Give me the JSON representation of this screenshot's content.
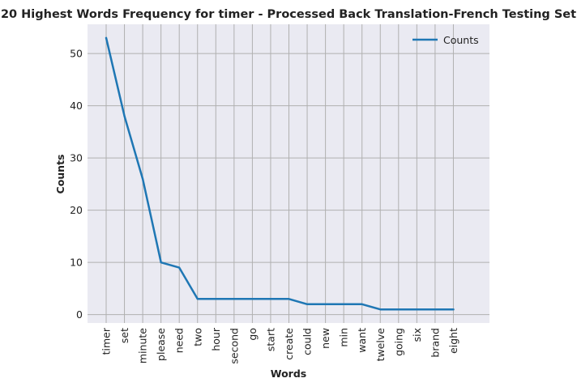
{
  "chart_data": {
    "type": "line",
    "title": "20 Highest Words Frequency for timer - Processed Back Translation-French Testing Set",
    "xlabel": "Words",
    "ylabel": "Counts",
    "categories": [
      "timer",
      "set",
      "minute",
      "please",
      "need",
      "two",
      "hour",
      "second",
      "go",
      "start",
      "create",
      "could",
      "new",
      "min",
      "want",
      "twelve",
      "going",
      "six",
      "brand",
      "eight"
    ],
    "series": [
      {
        "name": "Counts",
        "values": [
          53,
          38,
          26,
          10,
          9,
          3,
          3,
          3,
          3,
          3,
          3,
          2,
          2,
          2,
          2,
          1,
          1,
          1,
          1,
          1
        ],
        "color": "#1f77b4"
      }
    ],
    "yticks": [
      0,
      10,
      20,
      30,
      40,
      50
    ],
    "ylim": [
      -1.6,
      55.6
    ],
    "grid": true,
    "legend_position": "top-right",
    "background_color": "#eaeaf2",
    "grid_color": "#b0b0b0"
  }
}
